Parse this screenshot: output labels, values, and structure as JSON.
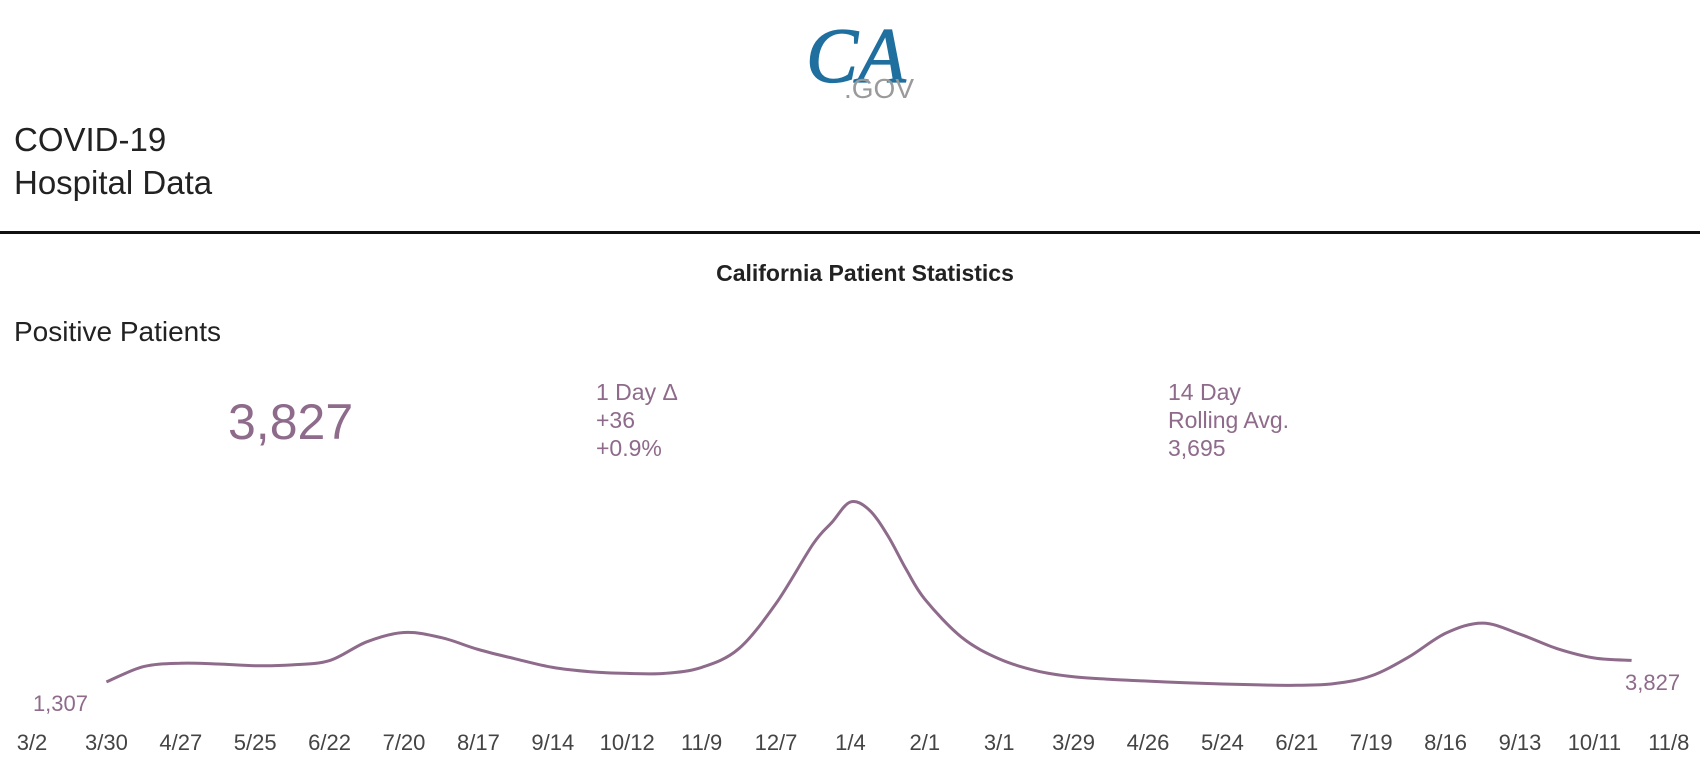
{
  "logo": {
    "mark": "CA",
    "suffix": ".GOV",
    "colors": {
      "mark": "#1f6f9f",
      "suffix": "#9a9a9a"
    }
  },
  "header": {
    "title_line1": "COVID-19",
    "title_line2": "Hospital Data"
  },
  "section": {
    "title": "California Patient Statistics"
  },
  "metric": {
    "title": "Positive Patients",
    "current_value": "3,827",
    "delta": {
      "label": "1 Day Δ",
      "absolute": "+36",
      "percent": "+0.9%"
    },
    "rolling": {
      "label_line1": "14 Day",
      "label_line2": "Rolling Avg.",
      "value": "3,695"
    }
  },
  "colors": {
    "accent": "#8e6a8b",
    "text": "#222222",
    "divider": "#111111"
  },
  "chart_data": {
    "type": "line",
    "x_ticks": [
      "3/2",
      "3/30",
      "4/27",
      "5/25",
      "6/22",
      "7/20",
      "8/17",
      "9/14",
      "10/12",
      "11/9",
      "12/7",
      "1/4",
      "2/1",
      "3/1",
      "3/29",
      "4/26",
      "5/24",
      "6/21",
      "7/19",
      "8/16",
      "9/13",
      "10/11",
      "11/8"
    ],
    "start_label": "1,307",
    "end_label": "3,827",
    "grid": false,
    "legend": "none",
    "series": [
      {
        "color": "#8e6a8b",
        "points": [
          [
            "3/30",
            1307
          ],
          [
            "4/13",
            3100
          ],
          [
            "4/27",
            3500
          ],
          [
            "5/11",
            3400
          ],
          [
            "5/25",
            3200
          ],
          [
            "6/8",
            3300
          ],
          [
            "6/22",
            3800
          ],
          [
            "7/6",
            6000
          ],
          [
            "7/20",
            7100
          ],
          [
            "8/3",
            6500
          ],
          [
            "8/17",
            5100
          ],
          [
            "8/31",
            4000
          ],
          [
            "9/14",
            3000
          ],
          [
            "9/28",
            2500
          ],
          [
            "10/12",
            2300
          ],
          [
            "10/26",
            2300
          ],
          [
            "11/9",
            3000
          ],
          [
            "11/23",
            5200
          ],
          [
            "12/7",
            10500
          ],
          [
            "12/21",
            17500
          ],
          [
            "12/28",
            20000
          ],
          [
            "1/4",
            22400
          ],
          [
            "1/11",
            21500
          ],
          [
            "1/18",
            18500
          ],
          [
            "1/25",
            14500
          ],
          [
            "2/1",
            11000
          ],
          [
            "2/15",
            6500
          ],
          [
            "3/1",
            4000
          ],
          [
            "3/15",
            2600
          ],
          [
            "3/29",
            1900
          ],
          [
            "4/12",
            1600
          ],
          [
            "4/26",
            1400
          ],
          [
            "5/10",
            1200
          ],
          [
            "5/24",
            1050
          ],
          [
            "6/7",
            950
          ],
          [
            "6/21",
            900
          ],
          [
            "7/5",
            1100
          ],
          [
            "7/19",
            2000
          ],
          [
            "8/2",
            4200
          ],
          [
            "8/16",
            7000
          ],
          [
            "8/30",
            8200
          ],
          [
            "9/13",
            6900
          ],
          [
            "9/27",
            5200
          ],
          [
            "10/11",
            4100
          ],
          [
            "10/25",
            3827
          ]
        ]
      }
    ]
  }
}
